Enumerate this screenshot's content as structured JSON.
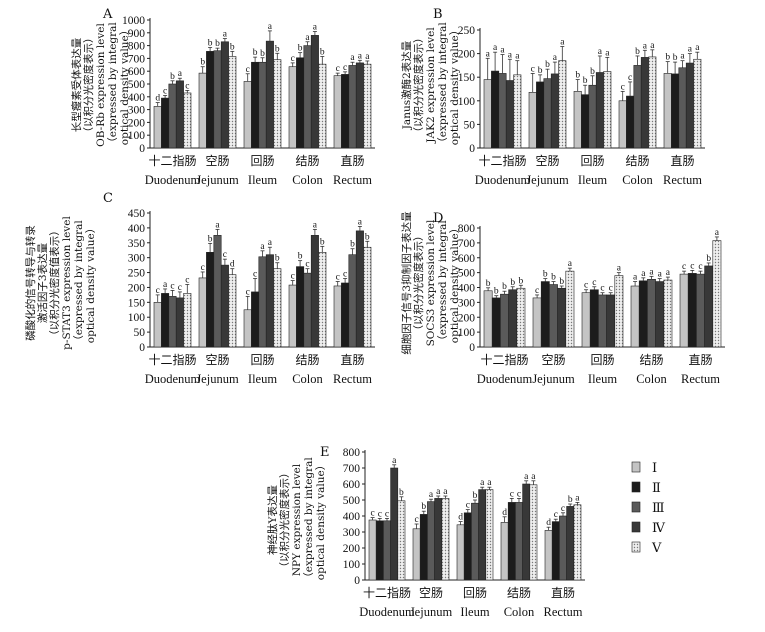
{
  "chart_data": [
    {
      "panel": "A",
      "type": "bar",
      "ylabel_lines": [
        "长型瘦素受体表达量",
        "（以积分光密度表示）",
        "OB-Rb expression level",
        "（expressed by integral",
        "optical density value）"
      ],
      "yticks": [
        0,
        100,
        200,
        300,
        400,
        500,
        600,
        700,
        800,
        900,
        1000
      ],
      "ylim": [
        0,
        1000
      ],
      "categories": [
        {
          "zh": "十二指肠",
          "en": "Duodenum"
        },
        {
          "zh": "空肠",
          "en": "Jejunum"
        },
        {
          "zh": "回肠",
          "en": "Ileum"
        },
        {
          "zh": "结肠",
          "en": "Colon"
        },
        {
          "zh": "直肠",
          "en": "Rectum"
        }
      ],
      "values": [
        [
          325,
          390,
          500,
          525,
          430
        ],
        [
          585,
          755,
          760,
          830,
          715
        ],
        [
          520,
          670,
          670,
          835,
          690
        ],
        [
          635,
          705,
          800,
          880,
          655
        ],
        [
          565,
          575,
          645,
          665,
          655
        ]
      ],
      "errors": [
        [
          30,
          20,
          25,
          20,
          20
        ],
        [
          50,
          30,
          20,
          25,
          40
        ],
        [
          60,
          40,
          35,
          80,
          50
        ],
        [
          30,
          40,
          30,
          30,
          60
        ],
        [
          20,
          20,
          25,
          20,
          25
        ]
      ],
      "letters": [
        [
          "d",
          "c",
          "b",
          "a",
          "c"
        ],
        [
          "b",
          "b",
          "b",
          "a",
          "b"
        ],
        [
          "c",
          "b",
          "b",
          "a",
          "b"
        ],
        [
          "c",
          "b",
          "a",
          "a",
          "b"
        ],
        [
          "c",
          "c",
          "a",
          "a",
          "a"
        ]
      ]
    },
    {
      "panel": "B",
      "type": "bar",
      "ylabel_lines": [
        "Janus激酶2表达量",
        "（以积分光密度表示）",
        "JAK2 expression level",
        "（expressed by integral",
        "optical density value）"
      ],
      "yticks": [
        0,
        50,
        100,
        150,
        200,
        250
      ],
      "ylim": [
        0,
        250
      ],
      "categories": [
        {
          "zh": "十二指肠",
          "en": "Duodenum"
        },
        {
          "zh": "空肠",
          "en": "Jejunum"
        },
        {
          "zh": "回肠",
          "en": "Ileum"
        },
        {
          "zh": "结肠",
          "en": "Colon"
        },
        {
          "zh": "直肠",
          "en": "Rectum"
        }
      ],
      "values": [
        [
          145,
          163,
          158,
          143,
          155
        ],
        [
          118,
          140,
          147,
          157,
          185
        ],
        [
          120,
          113,
          133,
          160,
          162
        ],
        [
          100,
          110,
          175,
          192,
          193
        ],
        [
          158,
          157,
          170,
          180,
          188
        ]
      ],
      "errors": [
        [
          45,
          40,
          40,
          45,
          30
        ],
        [
          40,
          15,
          20,
          25,
          30
        ],
        [
          25,
          20,
          20,
          35,
          30
        ],
        [
          20,
          30,
          20,
          15,
          15
        ],
        [
          25,
          25,
          15,
          20,
          15
        ]
      ],
      "letters": [
        [
          "a",
          "a",
          "a",
          "a",
          "a"
        ],
        [
          "c",
          "b",
          "b",
          "a",
          "a"
        ],
        [
          "b",
          "b",
          "b",
          "a",
          "a"
        ],
        [
          "c",
          "c",
          "b",
          "a",
          "a"
        ],
        [
          "b",
          "b",
          "a",
          "a",
          "a"
        ]
      ]
    },
    {
      "panel": "C",
      "type": "bar",
      "ylabel_lines": [
        "磷酸化的信号转导与转录",
        "激活因子3表达量",
        "（以积分光密度值表示）",
        "p-STAT3 expression level",
        "（expressed by integral",
        "optical density value）"
      ],
      "yticks": [
        0,
        50,
        100,
        150,
        200,
        250,
        300,
        350,
        400,
        450
      ],
      "ylim": [
        0,
        450
      ],
      "categories": [
        {
          "zh": "十二指肠",
          "en": "Duodenum"
        },
        {
          "zh": "空肠",
          "en": "Jejunum"
        },
        {
          "zh": "回肠",
          "en": "Ileum"
        },
        {
          "zh": "结肠",
          "en": "Colon"
        },
        {
          "zh": "直肠",
          "en": "Rectum"
        }
      ],
      "values": [
        [
          150,
          180,
          170,
          165,
          180
        ],
        [
          232,
          318,
          375,
          275,
          243
        ],
        [
          125,
          185,
          303,
          310,
          263
        ],
        [
          208,
          270,
          248,
          375,
          318
        ],
        [
          205,
          215,
          310,
          390,
          335
        ]
      ],
      "errors": [
        [
          25,
          15,
          20,
          20,
          30
        ],
        [
          20,
          30,
          20,
          20,
          20
        ],
        [
          45,
          45,
          20,
          25,
          20
        ],
        [
          15,
          20,
          15,
          20,
          20
        ],
        [
          15,
          15,
          20,
          15,
          20
        ]
      ],
      "letters": [
        [
          "c",
          "a",
          "c",
          "c",
          "c"
        ],
        [
          "c",
          "b",
          "a",
          "c",
          "d"
        ],
        [
          "c",
          "c",
          "a",
          "a",
          "b"
        ],
        [
          "c",
          "b",
          "c",
          "a",
          "b"
        ],
        [
          "c",
          "c",
          "b",
          "a",
          "b"
        ]
      ]
    },
    {
      "panel": "D",
      "type": "bar",
      "ylabel_lines": [
        "细胞因子信号3抑制因子表达量",
        "（以积分光密度表示）",
        "SOCS3 expression level",
        "（expressed by integral",
        "optical density value）"
      ],
      "yticks": [
        0,
        100,
        200,
        300,
        400,
        500,
        600,
        700,
        800
      ],
      "ylim": [
        0,
        800
      ],
      "categories": [
        {
          "zh": "十二指肠",
          "en": "Duodenum"
        },
        {
          "zh": "空肠",
          "en": "Jejunum"
        },
        {
          "zh": "回肠",
          "en": "Ileum"
        },
        {
          "zh": "结肠",
          "en": "Colon"
        },
        {
          "zh": "直肠",
          "en": "Rectum"
        }
      ],
      "values": [
        [
          378,
          330,
          355,
          385,
          395
        ],
        [
          330,
          440,
          420,
          395,
          510
        ],
        [
          365,
          385,
          350,
          350,
          480
        ],
        [
          410,
          445,
          455,
          440,
          450
        ],
        [
          490,
          495,
          490,
          545,
          715
        ]
      ],
      "errors": [
        [
          20,
          15,
          20,
          20,
          20
        ],
        [
          20,
          20,
          20,
          15,
          20
        ],
        [
          20,
          20,
          15,
          15,
          20
        ],
        [
          30,
          20,
          20,
          20,
          20
        ],
        [
          20,
          20,
          20,
          20,
          25
        ]
      ],
      "letters": [
        [
          "b",
          "b",
          "b",
          "b",
          "b"
        ],
        [
          "c",
          "b",
          "b",
          "b",
          "a"
        ],
        [
          "c",
          "c",
          "c",
          "c",
          "a"
        ],
        [
          "a",
          "a",
          "a",
          "a",
          "a"
        ],
        [
          "c",
          "c",
          "c",
          "b",
          "a"
        ]
      ]
    },
    {
      "panel": "E",
      "type": "bar",
      "ylabel_lines": [
        "神经肽Y表达量",
        "（以积分光密度表示）",
        "NPY expression level",
        "（expressed by integral",
        "optical density value）"
      ],
      "yticks": [
        0,
        100,
        200,
        300,
        400,
        500,
        600,
        700,
        800
      ],
      "ylim": [
        0,
        800
      ],
      "categories": [
        {
          "zh": "十二指肠",
          "en": "Duodenum"
        },
        {
          "zh": "空肠",
          "en": "Jejunum"
        },
        {
          "zh": "回肠",
          "en": "Ileum"
        },
        {
          "zh": "结肠",
          "en": "Colon"
        },
        {
          "zh": "直肠",
          "en": "Rectum"
        }
      ],
      "values": [
        [
          375,
          370,
          370,
          700,
          495
        ],
        [
          320,
          410,
          490,
          510,
          510
        ],
        [
          345,
          420,
          480,
          565,
          565
        ],
        [
          360,
          485,
          485,
          600,
          595
        ],
        [
          310,
          365,
          400,
          460,
          470
        ]
      ],
      "errors": [
        [
          15,
          15,
          15,
          20,
          25
        ],
        [
          30,
          20,
          15,
          15,
          15
        ],
        [
          20,
          20,
          20,
          15,
          15
        ],
        [
          35,
          25,
          25,
          20,
          25
        ],
        [
          20,
          15,
          20,
          15,
          15
        ]
      ],
      "letters": [
        [
          "c",
          "c",
          "c",
          "a",
          "b"
        ],
        [
          "c",
          "b",
          "a",
          "a",
          "a"
        ],
        [
          "d",
          "c",
          "b",
          "a",
          "a"
        ],
        [
          "d",
          "c",
          "c",
          "a",
          "a"
        ],
        [
          "d",
          "c",
          "c",
          "b",
          "a"
        ]
      ]
    }
  ],
  "legend": {
    "series": [
      "Ⅰ",
      "Ⅱ",
      "Ⅲ",
      "Ⅳ",
      "Ⅴ"
    ],
    "colors": [
      "#c4c4c4",
      "#1c1c1c",
      "#5a5a5a",
      "#383838",
      "#d9d9d9"
    ]
  }
}
